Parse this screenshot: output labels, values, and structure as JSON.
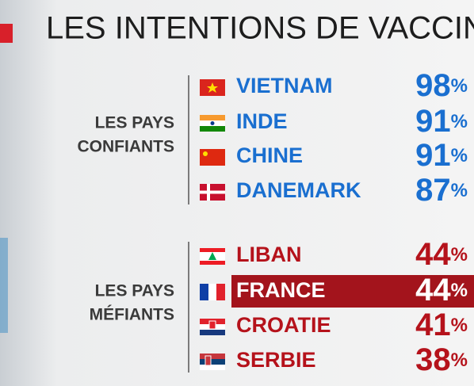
{
  "title": "LES INTENTIONS DE VACCINA",
  "groups": [
    {
      "label": [
        "LES PAYS",
        "CONFIANTS"
      ],
      "rows": [
        {
          "country": "VIETNAM",
          "value": 98,
          "unit": "%"
        },
        {
          "country": "INDE",
          "value": 91,
          "unit": "%"
        },
        {
          "country": "CHINE",
          "value": 91,
          "unit": "%"
        },
        {
          "country": "DANEMARK",
          "value": 87,
          "unit": "%"
        }
      ]
    },
    {
      "label": [
        "LES PAYS",
        "MÉFIANTS"
      ],
      "rows": [
        {
          "country": "LIBAN",
          "value": 44,
          "unit": "%"
        },
        {
          "country": "FRANCE",
          "value": 44,
          "unit": "%"
        },
        {
          "country": "CROATIE",
          "value": 41,
          "unit": "%"
        },
        {
          "country": "SERBIE",
          "value": 38,
          "unit": "%"
        }
      ]
    }
  ]
}
